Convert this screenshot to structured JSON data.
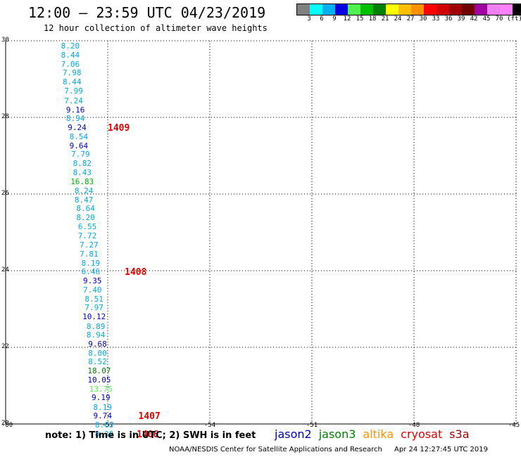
{
  "header": {
    "title": "12:00 — 23:59 UTC 04/23/2019",
    "subtitle": "12 hour collection of altimeter wave heights"
  },
  "color_scale": {
    "colors": [
      "#808080",
      "#00ffff",
      "#00b0f0",
      "#0000e0",
      "#50f050",
      "#00c000",
      "#008000",
      "#ffff00",
      "#ffc000",
      "#ff9000",
      "#ff0000",
      "#d00000",
      "#a00000",
      "#700000",
      "#a000a0",
      "#f080f0",
      "#ff80ff",
      "#000000"
    ],
    "labels": [
      "3",
      "6",
      "9",
      "12",
      "15",
      "18",
      "21",
      "24",
      "27",
      "30",
      "33",
      "36",
      "39",
      "42",
      "45",
      "70",
      "(ft)"
    ]
  },
  "chart_data": {
    "type": "scatter",
    "xlim": [
      -60,
      -45
    ],
    "ylim": [
      20,
      30
    ],
    "x_ticks": [
      "-60",
      "-57",
      "-54",
      "-51",
      "-48",
      "-45"
    ],
    "y_ticks": [
      "30",
      "28",
      "26",
      "24",
      "22",
      "20"
    ],
    "grid": true,
    "points": [
      {
        "lon": -58.1,
        "lat": 29.85,
        "v": "8.20",
        "sat": "jason3"
      },
      {
        "lon": -58.1,
        "lat": 29.62,
        "v": "8.44",
        "sat": "jason3"
      },
      {
        "lon": -58.1,
        "lat": 29.38,
        "v": "7.06",
        "sat": "jason3"
      },
      {
        "lon": -58.05,
        "lat": 29.15,
        "v": "7.98",
        "sat": "jason3"
      },
      {
        "lon": -58.05,
        "lat": 28.91,
        "v": "8.44",
        "sat": "jason3"
      },
      {
        "lon": -58.0,
        "lat": 28.67,
        "v": "7.99",
        "sat": "jason3"
      },
      {
        "lon": -58.0,
        "lat": 28.43,
        "v": "7.24",
        "sat": "jason3"
      },
      {
        "lon": -57.95,
        "lat": 28.19,
        "v": "9.16",
        "sat": "jason2"
      },
      {
        "lon": -57.95,
        "lat": 27.96,
        "v": "8.94",
        "sat": "jason3"
      },
      {
        "lon": -57.9,
        "lat": 27.73,
        "v": "9.24",
        "sat": "jason2"
      },
      {
        "lon": -57.85,
        "lat": 27.49,
        "v": "8.54",
        "sat": "jason3"
      },
      {
        "lon": -57.85,
        "lat": 27.25,
        "v": "9.64",
        "sat": "jason2"
      },
      {
        "lon": -57.8,
        "lat": 27.02,
        "v": "7.79",
        "sat": "jason3"
      },
      {
        "lon": -57.75,
        "lat": 26.79,
        "v": "8.82",
        "sat": "jason3"
      },
      {
        "lon": -57.75,
        "lat": 26.55,
        "v": "8.43",
        "sat": "jason3"
      },
      {
        "lon": -57.75,
        "lat": 26.31,
        "v": "16.83",
        "sat": "jason3_green"
      },
      {
        "lon": -57.7,
        "lat": 26.08,
        "v": "8.24",
        "sat": "jason3"
      },
      {
        "lon": -57.7,
        "lat": 25.84,
        "v": "8.47",
        "sat": "jason3"
      },
      {
        "lon": -57.65,
        "lat": 25.61,
        "v": "8.64",
        "sat": "jason3"
      },
      {
        "lon": -57.65,
        "lat": 25.37,
        "v": "8.20",
        "sat": "jason3"
      },
      {
        "lon": -57.6,
        "lat": 25.14,
        "v": "6.55",
        "sat": "jason3"
      },
      {
        "lon": -57.6,
        "lat": 24.9,
        "v": "7.72",
        "sat": "jason3"
      },
      {
        "lon": -57.55,
        "lat": 24.66,
        "v": "7.27",
        "sat": "jason3"
      },
      {
        "lon": -57.55,
        "lat": 24.43,
        "v": "7.81",
        "sat": "jason3"
      },
      {
        "lon": -57.5,
        "lat": 24.19,
        "v": "8.19",
        "sat": "jason3"
      },
      {
        "lon": -57.5,
        "lat": 23.96,
        "v": "6.46",
        "sat": "jason3"
      },
      {
        "lon": -57.45,
        "lat": 23.72,
        "v": "9.35",
        "sat": "jason2"
      },
      {
        "lon": -57.45,
        "lat": 23.49,
        "v": "7.40",
        "sat": "jason3"
      },
      {
        "lon": -57.4,
        "lat": 23.25,
        "v": "8.51",
        "sat": "jason3"
      },
      {
        "lon": -57.4,
        "lat": 23.02,
        "v": "7.97",
        "sat": "jason3"
      },
      {
        "lon": -57.4,
        "lat": 22.78,
        "v": "10.12",
        "sat": "jason2"
      },
      {
        "lon": -57.35,
        "lat": 22.54,
        "v": "8.89",
        "sat": "jason3"
      },
      {
        "lon": -57.35,
        "lat": 22.31,
        "v": "8.94",
        "sat": "jason3"
      },
      {
        "lon": -57.3,
        "lat": 22.07,
        "v": "9.68",
        "sat": "jason2"
      },
      {
        "lon": -57.3,
        "lat": 21.84,
        "v": "8.00",
        "sat": "jason3"
      },
      {
        "lon": -57.3,
        "lat": 21.61,
        "v": "8.52",
        "sat": "jason3"
      },
      {
        "lon": -57.25,
        "lat": 21.37,
        "v": "18.07",
        "sat": "jason3_dark"
      },
      {
        "lon": -57.25,
        "lat": 21.14,
        "v": "10.05",
        "sat": "jason2"
      },
      {
        "lon": -57.2,
        "lat": 20.9,
        "v": "13.75",
        "sat": "jason3_light"
      },
      {
        "lon": -57.2,
        "lat": 20.67,
        "v": "9.19",
        "sat": "jason2"
      },
      {
        "lon": -57.15,
        "lat": 20.43,
        "v": "8.19",
        "sat": "jason3"
      },
      {
        "lon": -57.15,
        "lat": 20.2,
        "v": "9.74",
        "sat": "jason2"
      },
      {
        "lon": -57.1,
        "lat": 19.97,
        "v": "8.03",
        "sat": "jason3"
      },
      {
        "lon": -57.1,
        "lat": 19.73,
        "v": "8.39",
        "sat": "jason3"
      }
    ],
    "time_tags": [
      {
        "lon": -57.0,
        "lat": 27.73,
        "v": "1409"
      },
      {
        "lon": -56.5,
        "lat": 23.96,
        "v": "1408"
      },
      {
        "lon": -56.1,
        "lat": 20.2,
        "v": "1407"
      },
      {
        "lon": -56.15,
        "lat": 19.73,
        "v": "1406"
      }
    ]
  },
  "point_colors": {
    "jason2": "#0000c0",
    "jason3": "#00a8e8",
    "jason3_green": "#00b000",
    "jason3_dark": "#008000",
    "jason3_light": "#50f050"
  },
  "note": "note: 1) Time is in UTC; 2) SWH is in feet",
  "legend": [
    {
      "label": "jason2",
      "color": "#0000c0"
    },
    {
      "label": "jason3",
      "color": "#008000"
    },
    {
      "label": "altika",
      "color": "#ff9000"
    },
    {
      "label": "cryosat",
      "color": "#e00000"
    },
    {
      "label": "s3a",
      "color": "#a00000"
    }
  ],
  "footer": {
    "source": "NOAA/NESDIS Center for Satellite Applications and Research",
    "timestamp": "Apr 24 12:27:45 UTC 2019"
  }
}
